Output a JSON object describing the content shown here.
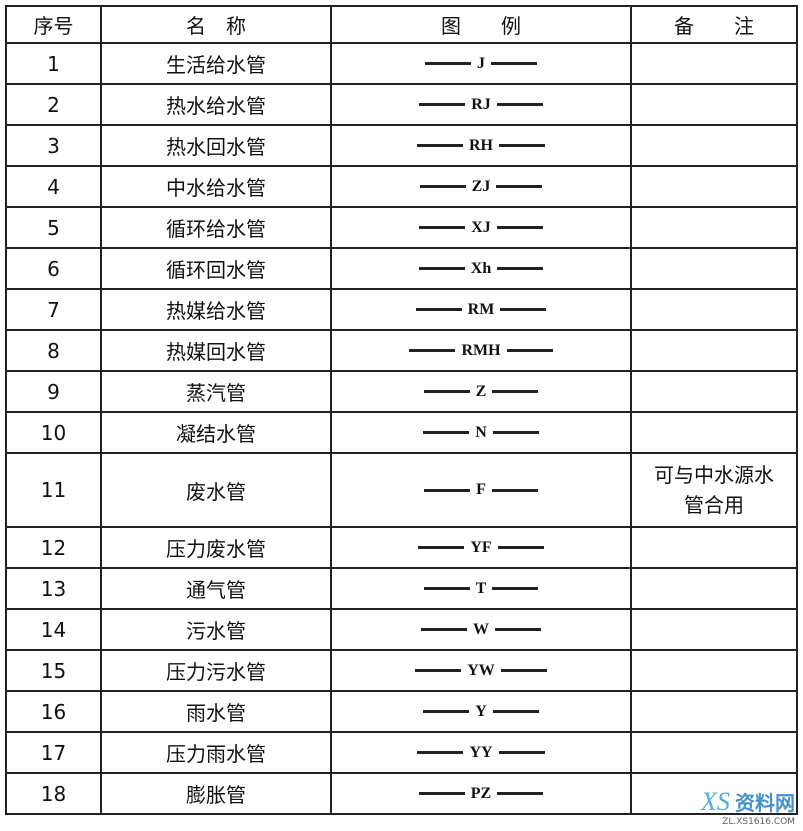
{
  "header": {
    "no": "序号",
    "name": "名　称",
    "legend": "图　　例",
    "note": "备　　注"
  },
  "rows": [
    {
      "no": "1",
      "name": "生活给水管",
      "legend": "J"
    },
    {
      "no": "2",
      "name": "热水给水管",
      "legend": "RJ"
    },
    {
      "no": "3",
      "name": "热水回水管",
      "legend": "RH"
    },
    {
      "no": "4",
      "name": "中水给水管",
      "legend": "ZJ"
    },
    {
      "no": "5",
      "name": "循环给水管",
      "legend": "XJ"
    },
    {
      "no": "6",
      "name": "循环回水管",
      "legend": "Xh"
    },
    {
      "no": "7",
      "name": "热媒给水管",
      "legend": "RM"
    },
    {
      "no": "8",
      "name": "热媒回水管",
      "legend": "RMH"
    },
    {
      "no": "9",
      "name": "蒸汽管",
      "legend": "Z"
    },
    {
      "no": "10",
      "name": "凝结水管",
      "legend": "N"
    },
    {
      "no": "11",
      "name": "废水管",
      "legend": "F",
      "note": "可与中水源水管合用"
    },
    {
      "no": "12",
      "name": "压力废水管",
      "legend": "YF"
    },
    {
      "no": "13",
      "name": "通气管",
      "legend": "T"
    },
    {
      "no": "14",
      "name": "污水管",
      "legend": "W"
    },
    {
      "no": "15",
      "name": "压力污水管",
      "legend": "YW"
    },
    {
      "no": "16",
      "name": "雨水管",
      "legend": "Y"
    },
    {
      "no": "17",
      "name": "压力雨水管",
      "legend": "YY"
    },
    {
      "no": "18",
      "name": "膨胀管",
      "legend": "PZ"
    }
  ],
  "watermark": {
    "logo": "XS",
    "site": "资料网",
    "url": "ZL.XS1616.COM"
  }
}
